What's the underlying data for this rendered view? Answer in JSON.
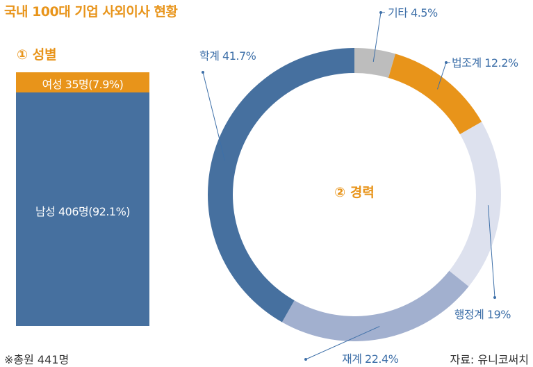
{
  "title": "국내 100대 기업 사외이사 현황",
  "note": "※총원 441명",
  "source": "자료: 유니코써치",
  "colors": {
    "accent": "#e8941a",
    "navy": "#46709f",
    "mid": "#a2b0cf",
    "light": "#dde1ee",
    "gray": "#bdbdbd",
    "label_text": "#3d6fa8"
  },
  "chart_data": [
    {
      "type": "bar",
      "title": "① 성별",
      "stacked": true,
      "categories": [
        "여성",
        "남성"
      ],
      "values": [
        35,
        406
      ],
      "percents": [
        7.9,
        92.1
      ],
      "labels": [
        "여성 35명(7.9%)",
        "남성 406명(92.1%)"
      ],
      "colors": [
        "#e8941a",
        "#46709f"
      ]
    },
    {
      "type": "pie",
      "donut": true,
      "title": "② 경력",
      "categories": [
        "기타",
        "법조계",
        "행정계",
        "재계",
        "학계"
      ],
      "values": [
        4.5,
        12.2,
        19,
        22.4,
        41.7
      ],
      "labels": [
        "기타 4.5%",
        "법조계 12.2%",
        "행정계 19%",
        "재계 22.4%",
        "학계 41.7%"
      ],
      "colors": [
        "#bdbdbd",
        "#e8941a",
        "#dde1ee",
        "#a2b0cf",
        "#46709f"
      ]
    }
  ]
}
